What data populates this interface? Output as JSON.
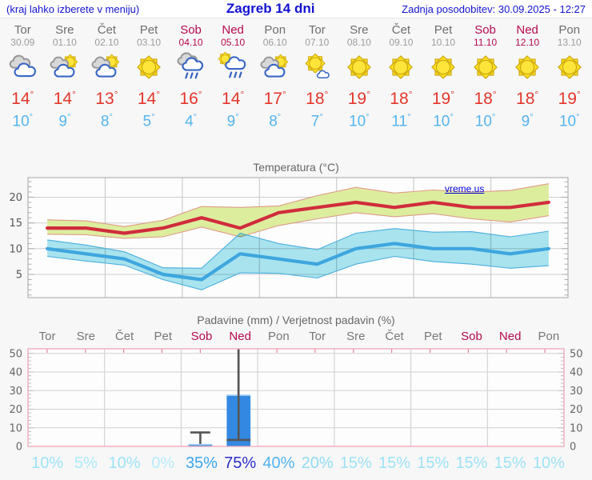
{
  "header": {
    "left": "(kraj lahko izberete v meniju)",
    "title": "Zagreb 14 dni",
    "updated": "Zadnja posodobitev: 30.09.2025 - 12:27"
  },
  "watermark": "vreme.us",
  "degree_symbol": "°",
  "percent_suffix": "%",
  "colors": {
    "page_background": "#f7f7f7",
    "header_text": "#1313d2",
    "weekday_text": "#6e6e6e",
    "date_text": "#9b9b9b",
    "weekend_text": "#b40a4e",
    "high_temp": "#e3362b",
    "low_temp": "#54b4ee",
    "max_line": "#d02c3c",
    "max_band": "#dded9e",
    "max_band_edge": "#e09a86",
    "min_line": "#3ea6df",
    "min_band": "#a9e5f0",
    "min_band_edge": "#4aaedd",
    "bar_blue": "#3389e2",
    "whisker_gray": "#555555",
    "precip_frame_pink": "#ef9fb4",
    "watermark_blue": "#0000dd"
  },
  "days": [
    {
      "name": "Tor",
      "date": "30.09",
      "weekend": false,
      "icon": "cloudy",
      "high": "14",
      "low": "10"
    },
    {
      "name": "Sre",
      "date": "01.10",
      "weekend": false,
      "icon": "sun-cloud",
      "high": "14",
      "low": "9"
    },
    {
      "name": "Čet",
      "date": "02.10",
      "weekend": false,
      "icon": "sun-cloud",
      "high": "13",
      "low": "8"
    },
    {
      "name": "Pet",
      "date": "03.10",
      "weekend": false,
      "icon": "sunny",
      "high": "14",
      "low": "5"
    },
    {
      "name": "Sob",
      "date": "04.10",
      "weekend": true,
      "icon": "rain",
      "high": "16",
      "low": "4"
    },
    {
      "name": "Ned",
      "date": "05.10",
      "weekend": true,
      "icon": "sun-rain",
      "high": "14",
      "low": "9"
    },
    {
      "name": "Pon",
      "date": "06.10",
      "weekend": false,
      "icon": "sun-cloud",
      "high": "17",
      "low": "8"
    },
    {
      "name": "Tor",
      "date": "07.10",
      "weekend": false,
      "icon": "sun-small-cloud",
      "high": "18",
      "low": "7"
    },
    {
      "name": "Sre",
      "date": "08.10",
      "weekend": false,
      "icon": "sunny",
      "high": "19",
      "low": "10"
    },
    {
      "name": "Čet",
      "date": "09.10",
      "weekend": false,
      "icon": "sunny",
      "high": "18",
      "low": "11"
    },
    {
      "name": "Pet",
      "date": "10.10",
      "weekend": false,
      "icon": "sunny",
      "high": "19",
      "low": "10"
    },
    {
      "name": "Sob",
      "date": "11.10",
      "weekend": true,
      "icon": "sunny",
      "high": "18",
      "low": "10"
    },
    {
      "name": "Ned",
      "date": "12.10",
      "weekend": true,
      "icon": "sunny",
      "high": "18",
      "low": "9"
    },
    {
      "name": "Pon",
      "date": "13.10",
      "weekend": false,
      "icon": "sunny",
      "high": "19",
      "low": "10"
    }
  ],
  "chart_data": [
    {
      "type": "area",
      "title": "Temperatura (°C)",
      "categories": [
        "Tor 30.09",
        "Sre 01.10",
        "Čet 02.10",
        "Pet 03.10",
        "Sob 04.10",
        "Ned 05.10",
        "Pon 06.10",
        "Tor 07.10",
        "Sre 08.10",
        "Čet 09.10",
        "Pet 10.10",
        "Sob 11.10",
        "Ned 12.10",
        "Pon 13.10"
      ],
      "series": [
        {
          "name": "max",
          "values": [
            14,
            14,
            13,
            14,
            16,
            14,
            17,
            18,
            19,
            18,
            19,
            18,
            18,
            19
          ],
          "color": "#d02c3c"
        },
        {
          "name": "min",
          "values": [
            10,
            9,
            8,
            5,
            4,
            9,
            8,
            7,
            10,
            11,
            10,
            10,
            9,
            10
          ],
          "color": "#3ea6df"
        },
        {
          "name": "max_band_upper",
          "values": [
            15.6,
            15.4,
            14.3,
            15.5,
            18.2,
            18.0,
            18.3,
            20.3,
            21.9,
            20.8,
            21.4,
            21.0,
            21.3,
            22.6
          ]
        },
        {
          "name": "max_band_lower",
          "values": [
            12.8,
            12.7,
            12.0,
            12.3,
            14.2,
            12.3,
            14.5,
            15.8,
            17.0,
            16.2,
            16.8,
            15.8,
            15.2,
            16.4
          ]
        },
        {
          "name": "min_band_upper",
          "values": [
            11.7,
            10.7,
            9.4,
            6.3,
            6.2,
            13.0,
            11.0,
            9.8,
            13.0,
            13.9,
            13.2,
            13.3,
            12.3,
            13.4
          ]
        },
        {
          "name": "min_band_lower",
          "values": [
            8.5,
            7.6,
            6.8,
            4.0,
            2.0,
            5.3,
            5.2,
            4.3,
            7.0,
            8.5,
            7.5,
            7.0,
            6.2,
            6.7
          ]
        }
      ],
      "ylim": [
        0.5,
        23.8
      ],
      "yticks": [
        5,
        10,
        15,
        20
      ],
      "grid": true,
      "legend_position": "none"
    },
    {
      "type": "bar",
      "title": "Padavine (mm) / Verjetnost padavin (%)",
      "categories": [
        "Tor",
        "Sre",
        "Čet",
        "Pet",
        "Sob",
        "Ned",
        "Pon",
        "Tor",
        "Sre",
        "Čet",
        "Pet",
        "Sob",
        "Ned",
        "Pon"
      ],
      "values": [
        0,
        0,
        0,
        0,
        1,
        27.5,
        0,
        0,
        0,
        0,
        0,
        0,
        0,
        0
      ],
      "bars": [
        {
          "index": 4,
          "value": 1,
          "whisker_low": 0,
          "whisker_high": 7.5
        },
        {
          "index": 5,
          "value": 27.5,
          "whisker_low": 3.5,
          "whisker_high": 55
        }
      ],
      "probabilities": [
        {
          "text": "10%",
          "color": "#9de2f6"
        },
        {
          "text": "5%",
          "color": "#aeeaf9"
        },
        {
          "text": "10%",
          "color": "#9de2f6"
        },
        {
          "text": "0%",
          "color": "#b6edfa"
        },
        {
          "text": "35%",
          "color": "#3ba6ed"
        },
        {
          "text": "75%",
          "color": "#2a2ec8"
        },
        {
          "text": "40%",
          "color": "#52b3ef"
        },
        {
          "text": "20%",
          "color": "#8fdcf4"
        },
        {
          "text": "15%",
          "color": "#9de2f6"
        },
        {
          "text": "15%",
          "color": "#9de2f6"
        },
        {
          "text": "15%",
          "color": "#9de2f6"
        },
        {
          "text": "15%",
          "color": "#9de2f6"
        },
        {
          "text": "15%",
          "color": "#9de2f6"
        },
        {
          "text": "10%",
          "color": "#9de2f6"
        }
      ],
      "ylim": [
        0,
        52.5
      ],
      "yticks": [
        0,
        10,
        20,
        30,
        40,
        50
      ],
      "grid": true,
      "ylabel_left": true,
      "ylabel_right": true
    }
  ]
}
